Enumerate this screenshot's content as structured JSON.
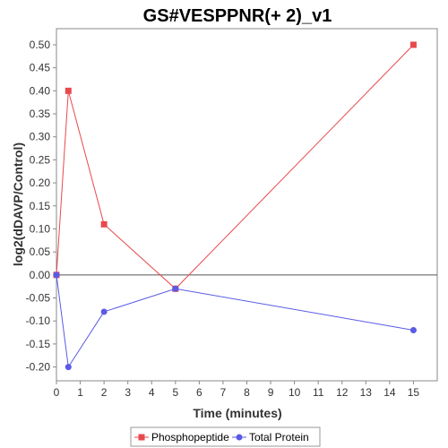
{
  "chart_data": {
    "type": "line",
    "title": "GS#VESPPNR(+ 2)_v1",
    "xlabel": "Time (minutes)",
    "ylabel": "log2(dDAVP/Control)",
    "xlim": [
      0,
      16
    ],
    "ylim": [
      -0.23,
      0.535
    ],
    "xticks": [
      0,
      1,
      2,
      3,
      4,
      5,
      6,
      7,
      8,
      9,
      10,
      11,
      12,
      13,
      14,
      15
    ],
    "yticks": [
      -0.2,
      -0.15,
      -0.1,
      -0.05,
      0.0,
      0.05,
      0.1,
      0.15,
      0.2,
      0.25,
      0.3,
      0.35,
      0.4,
      0.45,
      0.5
    ],
    "ytick_labels": [
      "-0.20",
      "-0.15",
      "-0.10",
      "-0.05",
      "0.00",
      "0.05",
      "0.10",
      "0.15",
      "0.20",
      "0.25",
      "0.30",
      "0.35",
      "0.40",
      "0.45",
      "0.50"
    ],
    "grid": false,
    "zero_line": true,
    "legend_position": "bottom",
    "series": [
      {
        "name": "Phosphopeptide",
        "marker": "square",
        "color": "#e8494c",
        "x": [
          0,
          0.5,
          2,
          5,
          15
        ],
        "y": [
          0.0,
          0.4,
          0.11,
          -0.03,
          0.5
        ]
      },
      {
        "name": "Total Protein",
        "marker": "circle",
        "color": "#5a5ae6",
        "x": [
          0,
          0.5,
          2,
          5,
          15
        ],
        "y": [
          0.0,
          -0.2,
          -0.08,
          -0.03,
          -0.12
        ]
      }
    ]
  }
}
